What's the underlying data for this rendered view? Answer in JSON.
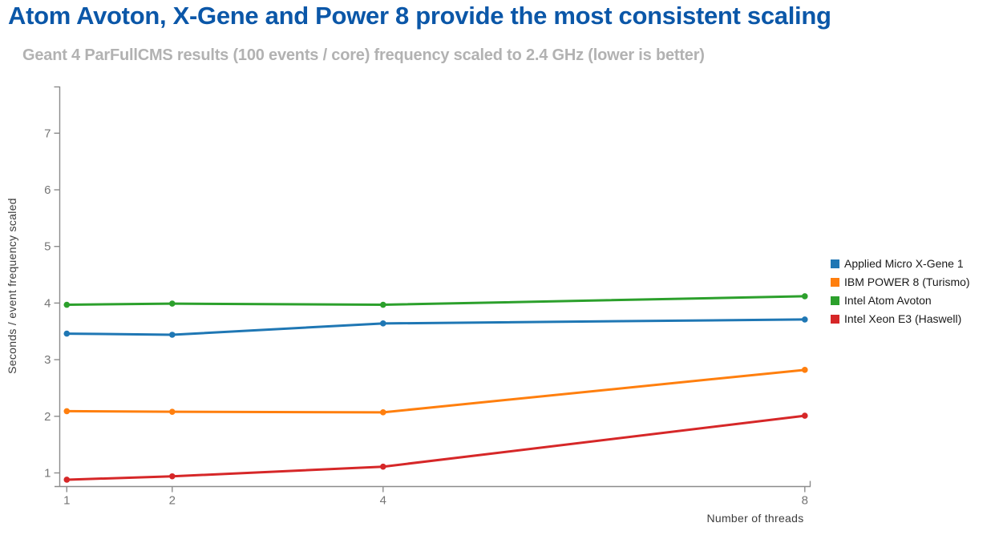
{
  "chart_data": {
    "type": "line",
    "title": "Atom Avoton, X-Gene and Power 8 provide the most consistent scaling",
    "subtitle": "Geant 4 ParFullCMS results (100 events / core) frequency scaled to 2.4 GHz (lower is better)",
    "xlabel": "Number of threads",
    "ylabel": "Seconds / event frequency scaled",
    "x": [
      1,
      2,
      4,
      8
    ],
    "x_tick_labels": [
      "1",
      "2",
      "4",
      "8"
    ],
    "y_ticks": [
      1,
      2,
      3,
      4,
      5,
      6,
      7
    ],
    "xlim": [
      0.93,
      8.06
    ],
    "ylim": [
      0.76,
      7.82
    ],
    "x_scale": "linear",
    "grid": false,
    "markers": true,
    "legend_position": "right-middle",
    "series": [
      {
        "name": "Applied Micro X-Gene 1",
        "color": "#1f77b4",
        "values": [
          3.46,
          3.44,
          3.64,
          3.71
        ]
      },
      {
        "name": "IBM POWER 8 (Turismo)",
        "color": "#ff7f0e",
        "values": [
          2.09,
          2.08,
          2.07,
          2.82
        ]
      },
      {
        "name": "Intel Atom Avoton",
        "color": "#2ca02c",
        "values": [
          3.97,
          3.99,
          3.97,
          4.12
        ]
      },
      {
        "name": "Intel Xeon E3 (Haswell)",
        "color": "#d62728",
        "values": [
          0.88,
          0.94,
          1.11,
          2.01
        ]
      }
    ],
    "colors": {
      "title": "#0b57a8",
      "subtitle": "#b2b2b2",
      "axis": "#8c8c8c",
      "tick_label": "#757575",
      "axis_label": "#3d3d3d",
      "legend_text": "#1a1a1a",
      "background": "#ffffff"
    }
  }
}
